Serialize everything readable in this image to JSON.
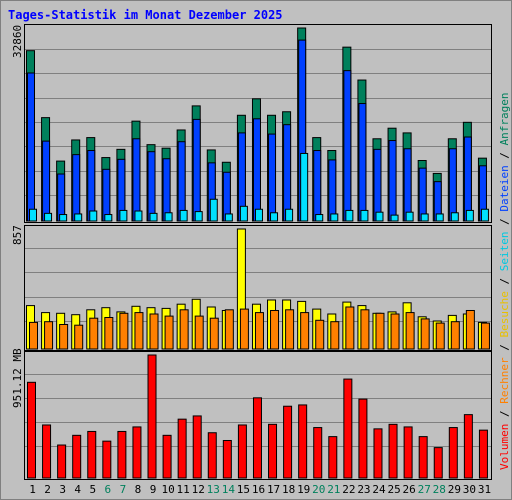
{
  "title": "Tages-Statistik im Monat Dezember 2025",
  "colors": {
    "background": "#c0c0c0",
    "anfragen": "#00805c",
    "dateien": "#0040ff",
    "seiten": "#00e0ff",
    "besuche": "#ffff00",
    "rechner": "#ff8000",
    "volumen": "#ff0000",
    "day_weekday": "#000000",
    "day_weekend": "#00805c",
    "title": "#0000ff"
  },
  "chart_data": [
    {
      "type": "bar",
      "panel": "top",
      "ymax_label": "32860",
      "ylim": [
        0,
        32860
      ],
      "x": [
        1,
        2,
        3,
        4,
        5,
        6,
        7,
        8,
        9,
        10,
        11,
        12,
        13,
        14,
        15,
        16,
        17,
        18,
        19,
        20,
        21,
        22,
        23,
        24,
        25,
        26,
        27,
        28,
        29,
        30,
        31
      ],
      "series": [
        {
          "name": "Anfragen",
          "values": [
            29000,
            17600,
            10200,
            13800,
            14200,
            10800,
            12200,
            17000,
            13000,
            12400,
            15500,
            19600,
            12100,
            10000,
            18000,
            20800,
            18000,
            18600,
            32860,
            14200,
            12000,
            29600,
            24000,
            14000,
            15800,
            15000,
            10300,
            8100,
            14000,
            16800,
            10700
          ]
        },
        {
          "name": "Dateien",
          "values": [
            25200,
            13600,
            8000,
            11300,
            12000,
            8800,
            10500,
            14000,
            11800,
            10600,
            13500,
            17300,
            9900,
            8300,
            15000,
            17400,
            14800,
            16400,
            30800,
            12000,
            10400,
            25600,
            20000,
            12200,
            13700,
            12300,
            9000,
            6700,
            12300,
            14300,
            9400
          ]
        },
        {
          "name": "Seiten",
          "values": [
            2000,
            1300,
            1100,
            1200,
            1700,
            1100,
            1800,
            1700,
            1300,
            1400,
            1800,
            1600,
            3700,
            1200,
            2500,
            2000,
            1400,
            2000,
            11500,
            1100,
            1200,
            1800,
            1800,
            1500,
            1000,
            1500,
            1200,
            1200,
            1400,
            1800,
            2000
          ]
        }
      ]
    },
    {
      "type": "bar",
      "panel": "middle",
      "ymax_label": "857",
      "ylim": [
        0,
        857
      ],
      "x": [
        1,
        2,
        3,
        4,
        5,
        6,
        7,
        8,
        9,
        10,
        11,
        12,
        13,
        14,
        15,
        16,
        17,
        18,
        19,
        20,
        21,
        22,
        23,
        24,
        25,
        26,
        27,
        28,
        29,
        30,
        31
      ],
      "series": [
        {
          "name": "Besuche",
          "values": [
            310,
            260,
            255,
            245,
            280,
            295,
            265,
            305,
            295,
            290,
            320,
            355,
            300,
            275,
            857,
            320,
            350,
            350,
            340,
            285,
            250,
            335,
            310,
            255,
            265,
            330,
            230,
            200,
            240,
            250,
            190
          ]
        },
        {
          "name": "Rechner",
          "values": [
            190,
            195,
            175,
            170,
            220,
            225,
            255,
            260,
            250,
            235,
            280,
            235,
            220,
            280,
            285,
            260,
            275,
            280,
            260,
            205,
            195,
            300,
            280,
            255,
            250,
            260,
            215,
            185,
            195,
            275,
            185
          ]
        }
      ]
    },
    {
      "type": "bar",
      "panel": "bottom",
      "ymax_label": "951.12 MB",
      "ylim": [
        0,
        951.12
      ],
      "x": [
        1,
        2,
        3,
        4,
        5,
        6,
        7,
        8,
        9,
        10,
        11,
        12,
        13,
        14,
        15,
        16,
        17,
        18,
        19,
        20,
        21,
        22,
        23,
        24,
        25,
        26,
        27,
        28,
        29,
        30,
        31
      ],
      "series": [
        {
          "name": "Volumen",
          "values": [
            740,
            410,
            255,
            330,
            360,
            285,
            360,
            395,
            951.12,
            330,
            455,
            480,
            350,
            290,
            410,
            620,
            415,
            555,
            565,
            390,
            320,
            765,
            610,
            380,
            415,
            395,
            320,
            235,
            390,
            490,
            370
          ]
        }
      ]
    }
  ],
  "legend": {
    "anfragen": "Anfragen",
    "dateien": "Dateien",
    "seiten": "Seiten",
    "besuche": "Besuche",
    "rechner": "Rechner",
    "volumen": "Volumen",
    "sep": "/"
  },
  "weekend_days": [
    6,
    7,
    13,
    14,
    20,
    21,
    27,
    28
  ]
}
